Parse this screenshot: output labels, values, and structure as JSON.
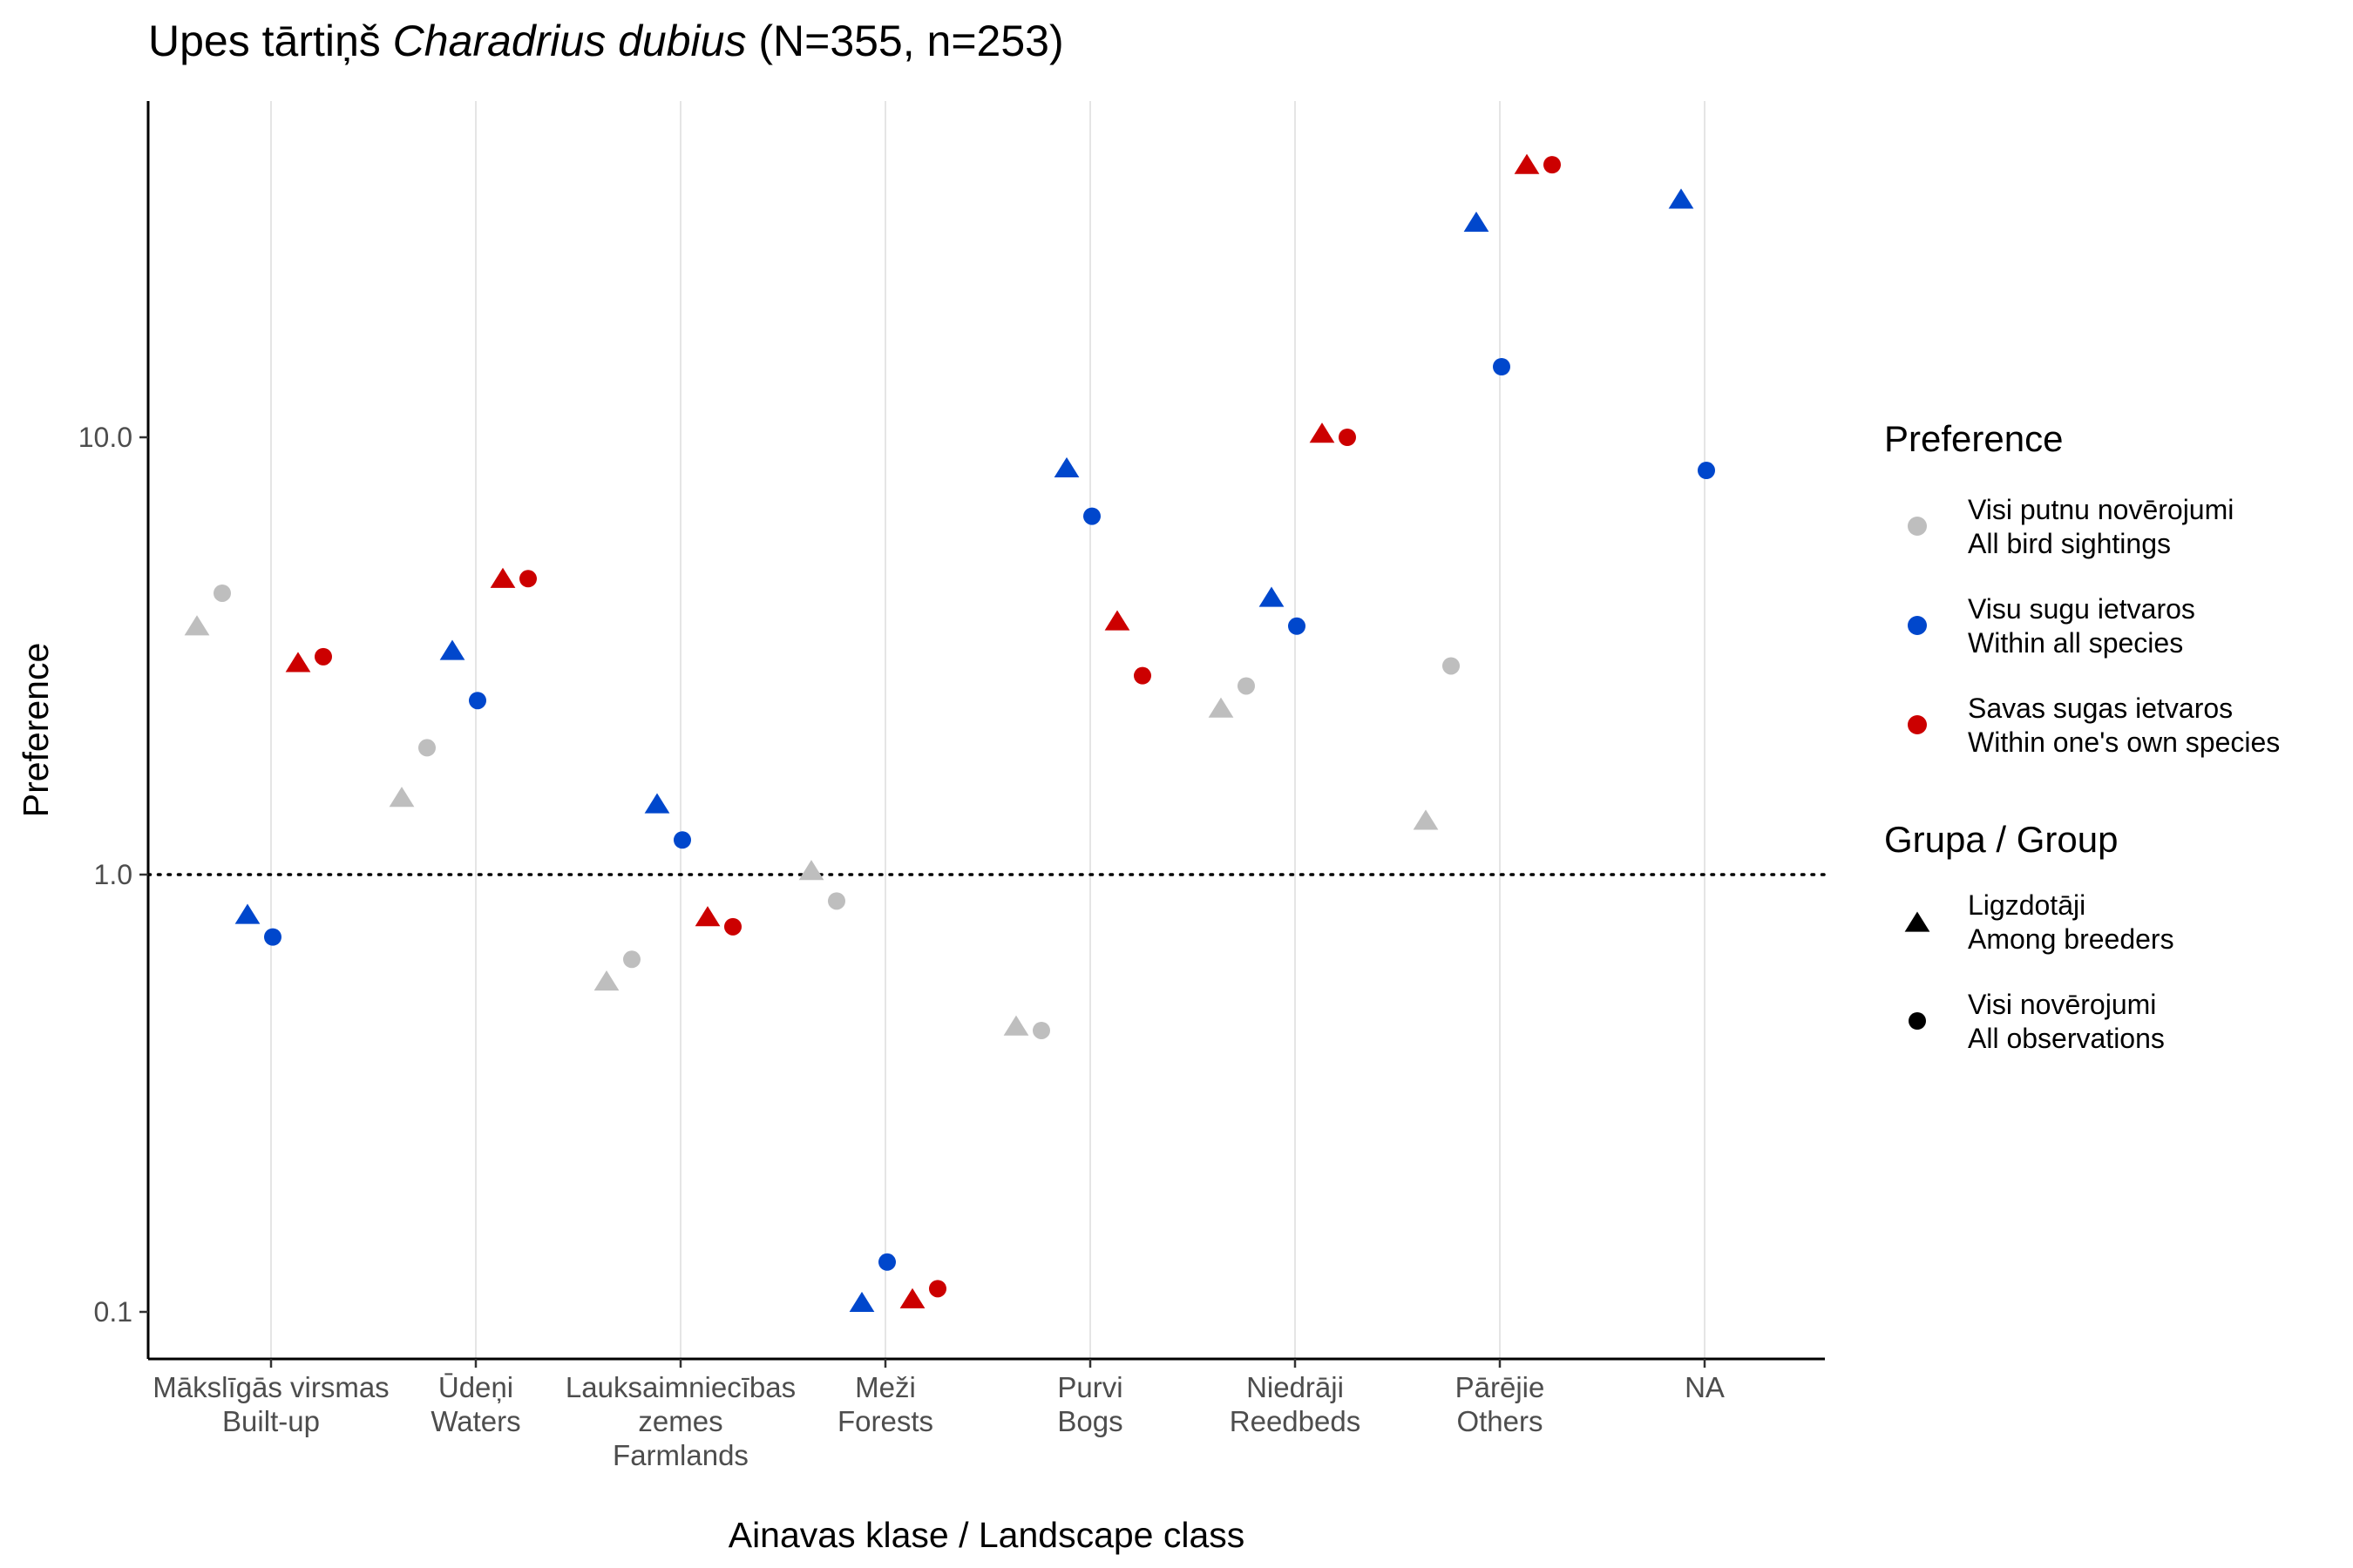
{
  "chart_data": {
    "type": "scatter",
    "title": {
      "prefix": "Upes tārtiņš ",
      "species": "Charadrius dubius",
      "suffix": " (N=355, n=253)"
    },
    "xlabel": "Ainavas klase / Landscape class",
    "ylabel": "Preference",
    "y_scale": "log10",
    "ylim": [
      0.08,
      48
    ],
    "yticks": [
      {
        "value": 0.1,
        "label": "0.1"
      },
      {
        "value": 1.0,
        "label": "1.0"
      },
      {
        "value": 10.0,
        "label": "10.0"
      }
    ],
    "reference_line": {
      "value": 1.0,
      "style": "dotted"
    },
    "grid": "vertical major lines only",
    "categories": [
      {
        "name": "Built-up",
        "lines": [
          "Mākslīgās virsmas",
          "Built-up"
        ]
      },
      {
        "name": "Waters",
        "lines": [
          "Ūdeņi",
          "Waters"
        ]
      },
      {
        "name": "Farmlands",
        "lines": [
          "Lauksaimniecības",
          "zemes",
          "Farmlands"
        ]
      },
      {
        "name": "Forests",
        "lines": [
          "Meži",
          "Forests"
        ]
      },
      {
        "name": "Bogs",
        "lines": [
          "Purvi",
          "Bogs"
        ]
      },
      {
        "name": "Reedbeds",
        "lines": [
          "Niedrāji",
          "Reedbeds"
        ]
      },
      {
        "name": "Others",
        "lines": [
          "Pārējie",
          "Others"
        ]
      },
      {
        "name": "NA",
        "lines": [
          "NA"
        ]
      }
    ],
    "series": [
      {
        "preference": "all_sightings",
        "group": "breeders",
        "values": [
          3.7,
          1.5,
          0.57,
          1.02,
          0.45,
          2.4,
          1.33,
          null
        ]
      },
      {
        "preference": "all_sightings",
        "group": "all_observations",
        "values": [
          4.4,
          1.95,
          0.64,
          0.87,
          0.44,
          2.7,
          3.0,
          null
        ]
      },
      {
        "preference": "within_all_species",
        "group": "breeders",
        "values": [
          0.81,
          3.25,
          1.45,
          0.105,
          8.5,
          4.3,
          31.0,
          35.0
        ]
      },
      {
        "preference": "within_all_species",
        "group": "all_observations",
        "values": [
          0.72,
          2.5,
          1.2,
          0.13,
          6.6,
          3.7,
          14.5,
          8.4
        ]
      },
      {
        "preference": "within_own_species",
        "group": "breeders",
        "values": [
          3.05,
          4.75,
          0.8,
          0.107,
          3.8,
          10.2,
          42.0,
          null
        ]
      },
      {
        "preference": "within_own_species",
        "group": "all_observations",
        "values": [
          3.15,
          4.75,
          0.76,
          0.113,
          2.85,
          10.0,
          42.0,
          null
        ]
      }
    ],
    "legend": {
      "position": "right",
      "preference": {
        "title": "Preference",
        "items": [
          {
            "key": "all_sightings",
            "lines": [
              "Visi putnu novērojumi",
              "All bird sightings"
            ],
            "color": "#bebebe"
          },
          {
            "key": "within_all_species",
            "lines": [
              "Visu sugu ietvaros",
              "Within all species"
            ],
            "color": "#0047cc"
          },
          {
            "key": "within_own_species",
            "lines": [
              "Savas sugas ietvaros",
              "Within one's own species"
            ],
            "color": "#cc0000"
          }
        ]
      },
      "group": {
        "title": "Grupa / Group",
        "items": [
          {
            "key": "breeders",
            "lines": [
              "Ligzdotāji",
              "Among breeders"
            ],
            "shape": "triangle"
          },
          {
            "key": "all_observations",
            "lines": [
              "Visi novērojumi",
              "All observations"
            ],
            "shape": "circle"
          }
        ]
      }
    }
  }
}
